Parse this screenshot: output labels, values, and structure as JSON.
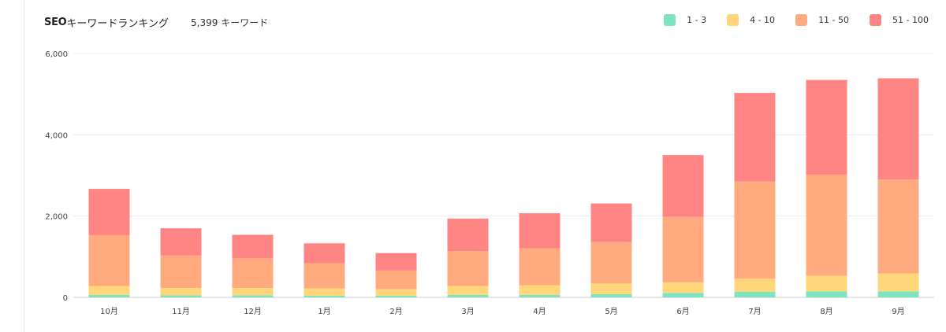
{
  "header": {
    "title_prefix": "SEO",
    "title_suffix": "キーワードランキング",
    "keyword_count": "5,399 キーワード"
  },
  "legend": [
    {
      "label": "1 - 3",
      "color": "#7fe3c0"
    },
    {
      "label": "4 - 10",
      "color": "#ffd77a"
    },
    {
      "label": "11 - 50",
      "color": "#ffab7f"
    },
    {
      "label": "51 - 100",
      "color": "#ff8484"
    }
  ],
  "chart_data": {
    "type": "bar",
    "stacked": true,
    "categories": [
      "10月",
      "11月",
      "12月",
      "1月",
      "2月",
      "3月",
      "4月",
      "5月",
      "6月",
      "7月",
      "8月",
      "9月"
    ],
    "ylim": [
      0,
      6000
    ],
    "yticks": [
      0,
      2000,
      4000,
      6000
    ],
    "ytick_labels": [
      "0",
      "2,000",
      "4,000",
      "6,000"
    ],
    "grid": true,
    "legend_position": "top-right",
    "series": [
      {
        "name": "1 - 3",
        "color": "#7fe3c0",
        "values": [
          60,
          50,
          50,
          40,
          40,
          60,
          60,
          80,
          110,
          140,
          150,
          150
        ]
      },
      {
        "name": "4 - 10",
        "color": "#ffd77a",
        "values": [
          220,
          180,
          180,
          180,
          160,
          220,
          240,
          260,
          260,
          320,
          380,
          440
        ]
      },
      {
        "name": "11 - 50",
        "color": "#ffab7f",
        "values": [
          1250,
          800,
          730,
          620,
          460,
          860,
          910,
          1020,
          1610,
          2390,
          2490,
          2310
        ]
      },
      {
        "name": "51 - 100",
        "color": "#ff8484",
        "values": [
          1140,
          670,
          580,
          490,
          430,
          800,
          860,
          950,
          1520,
          2180,
          2330,
          2490
        ]
      }
    ]
  }
}
